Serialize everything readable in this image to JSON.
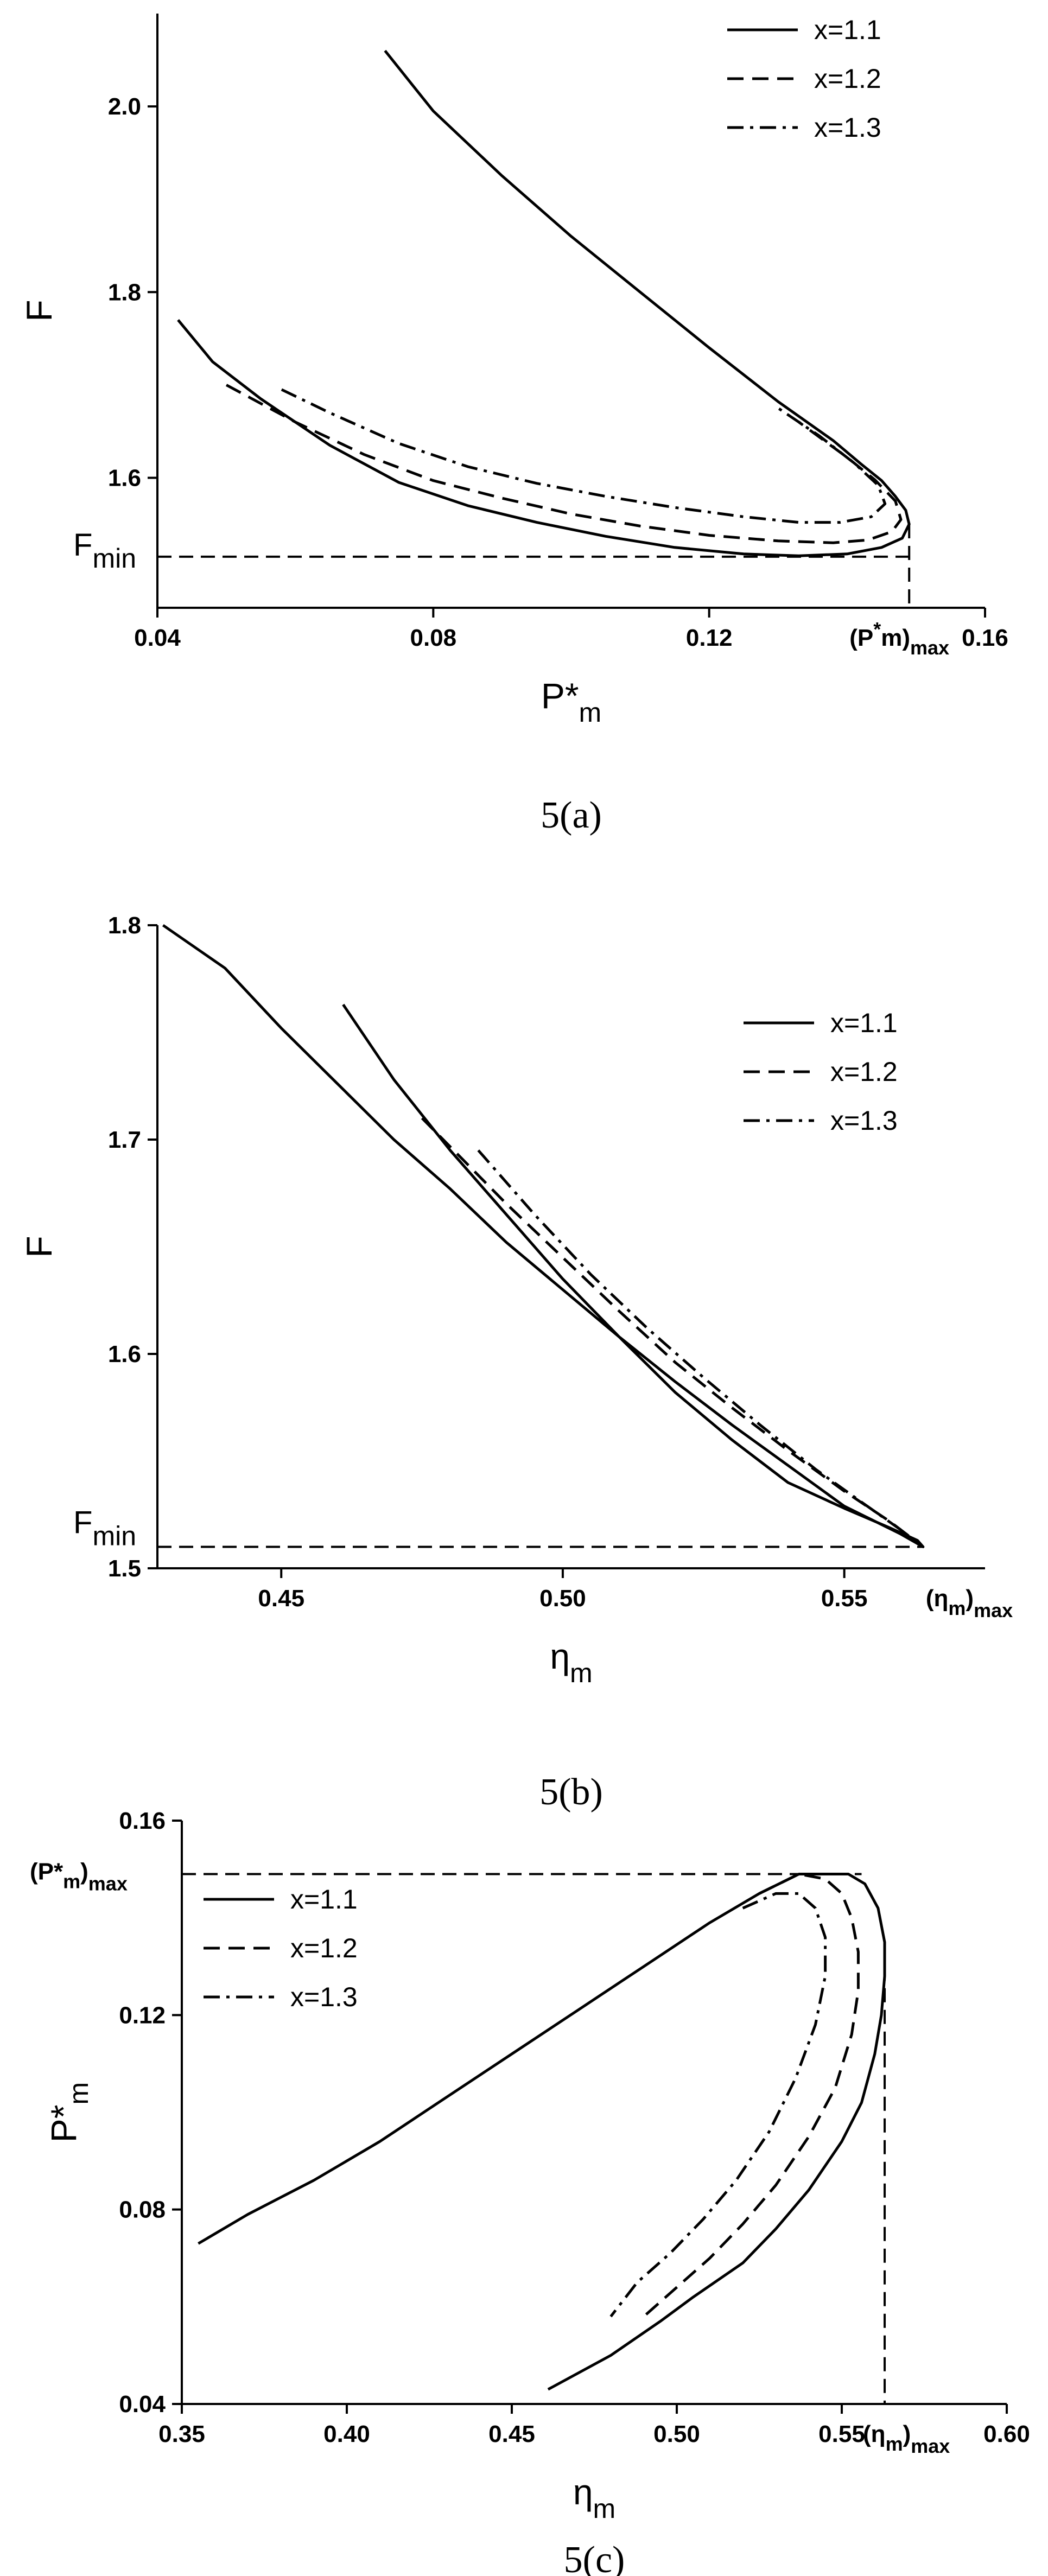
{
  "chart_data": [
    {
      "type": "line",
      "caption": "5(a)",
      "xlabel": "P*",
      "xlabel_sub": "m",
      "ylabel": "F",
      "xlim": [
        0.04,
        0.16
      ],
      "ylim": [
        1.46,
        2.1
      ],
      "xticks": [
        0.04,
        0.08,
        0.12,
        0.16
      ],
      "xtick_labels": [
        "0.04",
        "0.08",
        "0.12",
        "0.16"
      ],
      "yticks": [
        1.6,
        1.8,
        2.0
      ],
      "ytick_labels": [
        "1.6",
        "1.8",
        "2.0"
      ],
      "legend": "top-right",
      "annotations": {
        "fmin": {
          "text": "F",
          "sub": "min",
          "y": 1.515
        },
        "pmax": {
          "text": "(P",
          "sup": "*",
          "mid": "m",
          "tail": ")",
          "sub": "max",
          "x": 0.149
        }
      },
      "series": [
        {
          "name": "x=1.1",
          "style": "solid",
          "x": [
            0.043,
            0.048,
            0.055,
            0.065,
            0.075,
            0.085,
            0.095,
            0.105,
            0.115,
            0.125,
            0.133,
            0.14,
            0.145,
            0.148,
            0.149,
            0.1485,
            0.147,
            0.145,
            0.142,
            0.138,
            0.13,
            0.12,
            0.11,
            0.1,
            0.09,
            0.08,
            0.073
          ],
          "y": [
            1.77,
            1.725,
            1.685,
            1.635,
            1.595,
            1.57,
            1.552,
            1.537,
            1.525,
            1.518,
            1.516,
            1.518,
            1.525,
            1.535,
            1.55,
            1.565,
            1.58,
            1.597,
            1.615,
            1.64,
            1.682,
            1.74,
            1.8,
            1.86,
            1.925,
            1.995,
            2.06
          ]
        },
        {
          "name": "x=1.2",
          "style": "dashed",
          "x": [
            0.05,
            0.06,
            0.07,
            0.08,
            0.09,
            0.1,
            0.11,
            0.12,
            0.13,
            0.138,
            0.143,
            0.1465,
            0.1478,
            0.147,
            0.144,
            0.14,
            0.133
          ],
          "y": [
            1.7,
            1.66,
            1.625,
            1.597,
            1.578,
            1.561,
            1.548,
            1.538,
            1.532,
            1.53,
            1.533,
            1.542,
            1.555,
            1.575,
            1.598,
            1.622,
            1.66
          ]
        },
        {
          "name": "x=1.3",
          "style": "dashdot",
          "x": [
            0.058,
            0.065,
            0.075,
            0.085,
            0.095,
            0.105,
            0.115,
            0.125,
            0.133,
            0.139,
            0.1435,
            0.1455,
            0.1445,
            0.141,
            0.136,
            0.13
          ],
          "y": [
            1.695,
            1.67,
            1.637,
            1.612,
            1.594,
            1.58,
            1.568,
            1.558,
            1.552,
            1.552,
            1.558,
            1.572,
            1.592,
            1.616,
            1.645,
            1.675
          ]
        }
      ]
    },
    {
      "type": "line",
      "caption": "5(b)",
      "xlabel": "η",
      "xlabel_sub": "m",
      "ylabel": "F",
      "xlim": [
        0.428,
        0.575
      ],
      "ylim": [
        1.5,
        1.8
      ],
      "xticks": [
        0.45,
        0.5,
        0.55
      ],
      "xtick_labels": [
        "0.45",
        "0.50",
        "0.55"
      ],
      "yticks": [
        1.5,
        1.6,
        1.7,
        1.8
      ],
      "ytick_labels": [
        "1.5",
        "1.6",
        "1.7",
        "1.8"
      ],
      "legend": "top-right",
      "annotations": {
        "fmin": {
          "text": "F",
          "sub": "min",
          "y": 1.51
        },
        "etamax": {
          "text": "(η",
          "sub1": "m",
          "tail": ")",
          "sub": "max",
          "x": 0.564
        }
      },
      "series": [
        {
          "name": "x=1.1",
          "style": "solid",
          "x": [
            0.461,
            0.47,
            0.48,
            0.49,
            0.5,
            0.51,
            0.52,
            0.53,
            0.54,
            0.55,
            0.558,
            0.563,
            0.564,
            0.56,
            0.55,
            0.54,
            0.53,
            0.52,
            0.51,
            0.5,
            0.49,
            0.48,
            0.47,
            0.46,
            0.45,
            0.44,
            0.429
          ],
          "y": [
            1.763,
            1.728,
            1.695,
            1.665,
            1.635,
            1.608,
            1.582,
            1.56,
            1.54,
            1.528,
            1.519,
            1.513,
            1.51,
            1.516,
            1.529,
            1.548,
            1.567,
            1.587,
            1.608,
            1.63,
            1.652,
            1.677,
            1.7,
            1.726,
            1.752,
            1.78,
            1.8
          ]
        },
        {
          "name": "x=1.2",
          "style": "dashed",
          "x": [
            0.475,
            0.49,
            0.5,
            0.51,
            0.52,
            0.53,
            0.54,
            0.55,
            0.558,
            0.563
          ],
          "y": [
            1.71,
            1.67,
            1.645,
            1.62,
            1.596,
            1.575,
            1.555,
            1.536,
            1.522,
            1.512
          ]
        },
        {
          "name": "x=1.3",
          "style": "dashdot",
          "x": [
            0.485,
            0.495,
            0.505,
            0.515,
            0.525,
            0.535,
            0.545,
            0.553,
            0.56,
            0.563
          ],
          "y": [
            1.695,
            1.665,
            1.637,
            1.612,
            1.589,
            1.567,
            1.546,
            1.531,
            1.518,
            1.512
          ]
        }
      ]
    },
    {
      "type": "line",
      "caption": "5(c)",
      "xlabel": "η",
      "xlabel_sub": "m",
      "ylabel": "P*",
      "ylabel_sub": "m",
      "xlim": [
        0.35,
        0.6
      ],
      "ylim": [
        0.04,
        0.16
      ],
      "xticks": [
        0.35,
        0.4,
        0.45,
        0.5,
        0.55,
        0.6
      ],
      "xtick_labels": [
        "0.35",
        "0.40",
        "0.45",
        "0.50",
        "0.55",
        "0.60"
      ],
      "yticks": [
        0.04,
        0.08,
        0.12,
        0.16
      ],
      "ytick_labels": [
        "0.04",
        "0.08",
        "0.12",
        "0.16"
      ],
      "legend": "top-left",
      "annotations": {
        "pmax": {
          "text": "(P*",
          "sub1": "m",
          "tail": ")",
          "sub": "max",
          "y": 0.149
        },
        "etamax": {
          "text": "(η",
          "sub1": "m",
          "tail": ")",
          "sub": "max",
          "x": 0.563
        }
      },
      "series": [
        {
          "name": "x=1.1",
          "style": "solid",
          "x": [
            0.355,
            0.37,
            0.39,
            0.41,
            0.43,
            0.45,
            0.47,
            0.49,
            0.51,
            0.525,
            0.537,
            0.545,
            0.552,
            0.557,
            0.561,
            0.563,
            0.563,
            0.562,
            0.56,
            0.556,
            0.55,
            0.54,
            0.53,
            0.52,
            0.505,
            0.495,
            0.48,
            0.461
          ],
          "y": [
            0.073,
            0.079,
            0.086,
            0.094,
            0.103,
            0.112,
            0.121,
            0.13,
            0.139,
            0.145,
            0.149,
            0.149,
            0.149,
            0.147,
            0.142,
            0.135,
            0.128,
            0.12,
            0.112,
            0.102,
            0.094,
            0.084,
            0.076,
            0.069,
            0.062,
            0.057,
            0.05,
            0.043
          ]
        },
        {
          "name": "x=1.2",
          "style": "dashed",
          "x": [
            0.525,
            0.537,
            0.545,
            0.55,
            0.553,
            0.555,
            0.555,
            0.553,
            0.548,
            0.54,
            0.53,
            0.52,
            0.51,
            0.5,
            0.49
          ],
          "y": [
            0.145,
            0.149,
            0.148,
            0.145,
            0.14,
            0.133,
            0.125,
            0.116,
            0.105,
            0.095,
            0.085,
            0.077,
            0.07,
            0.064,
            0.058
          ]
        },
        {
          "name": "x=1.3",
          "style": "dashdot",
          "x": [
            0.52,
            0.53,
            0.537,
            0.542,
            0.545,
            0.545,
            0.542,
            0.536,
            0.528,
            0.518,
            0.508,
            0.498,
            0.488,
            0.48
          ],
          "y": [
            0.142,
            0.145,
            0.145,
            0.142,
            0.136,
            0.128,
            0.118,
            0.107,
            0.096,
            0.086,
            0.078,
            0.071,
            0.065,
            0.058
          ]
        }
      ]
    }
  ]
}
